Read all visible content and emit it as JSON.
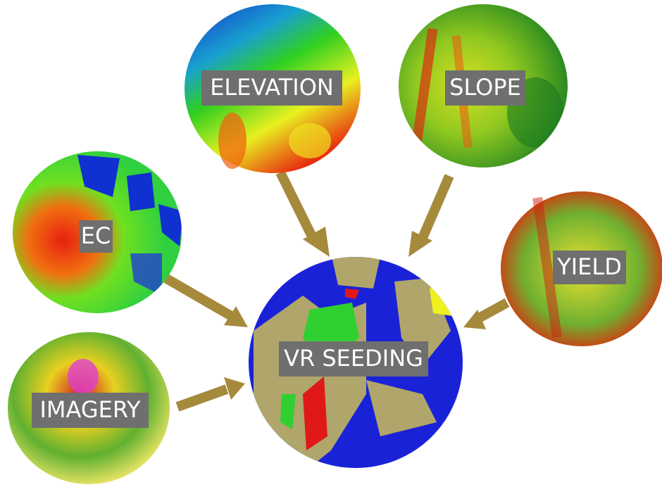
{
  "nodes": [
    {
      "label": "ELEVATION"
    },
    {
      "label": "SLOPE"
    },
    {
      "label": "EC"
    },
    {
      "label": "YIELD"
    },
    {
      "label": "IMAGERY"
    },
    {
      "label": "VR SEEDING"
    }
  ]
}
